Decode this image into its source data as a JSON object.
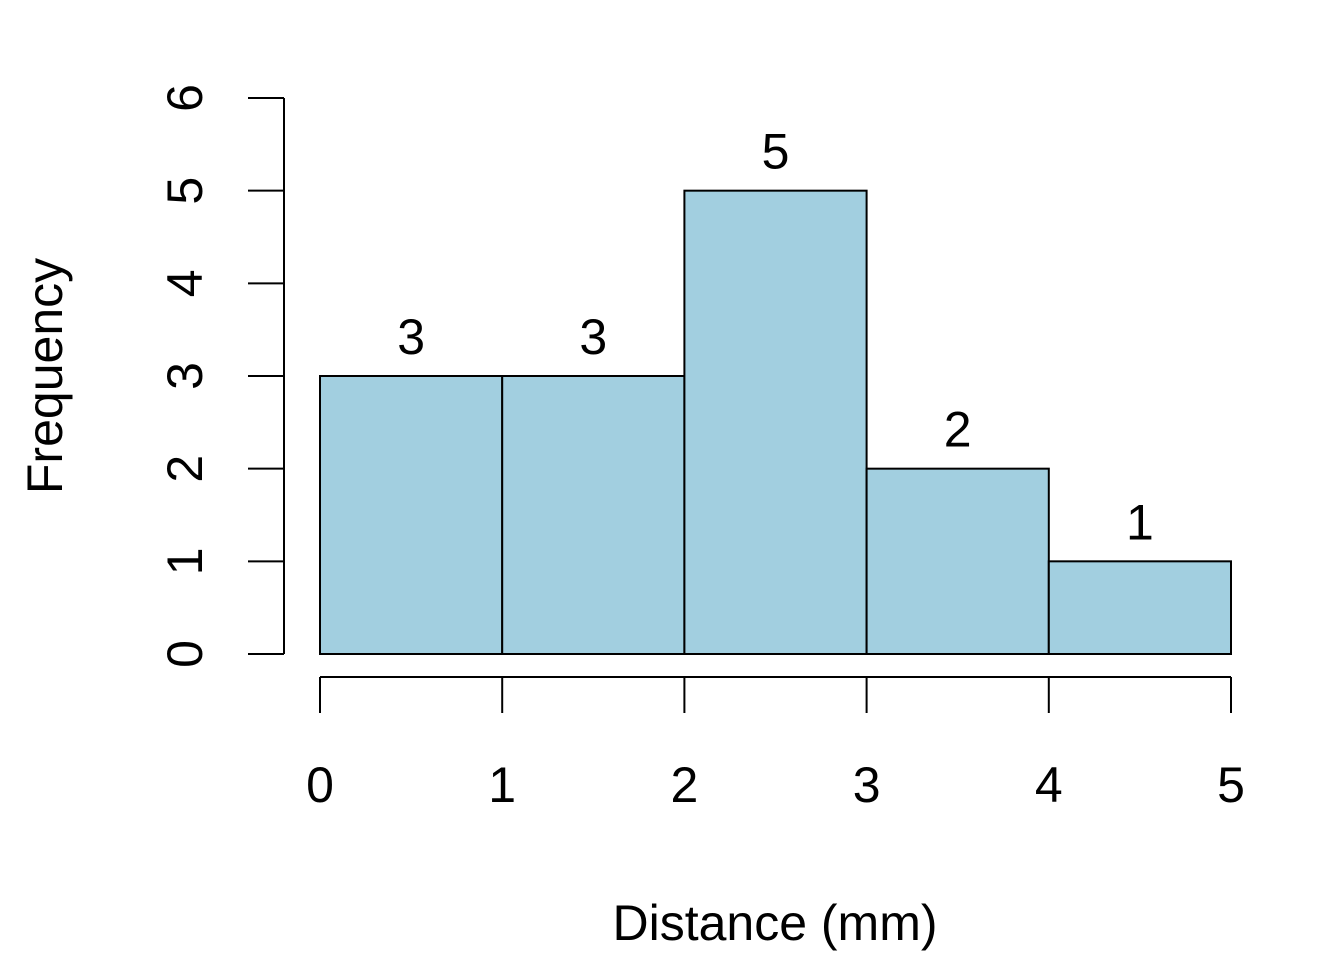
{
  "chart_data": {
    "type": "histogram",
    "bins": [
      {
        "start": 0,
        "end": 1,
        "count": 3
      },
      {
        "start": 1,
        "end": 2,
        "count": 3
      },
      {
        "start": 2,
        "end": 3,
        "count": 5
      },
      {
        "start": 3,
        "end": 4,
        "count": 2
      },
      {
        "start": 4,
        "end": 5,
        "count": 1
      }
    ],
    "xlabel": "Distance (mm)",
    "ylabel": "Frequency",
    "xlim": [
      0,
      5
    ],
    "ylim": [
      0,
      6
    ],
    "xticks": [
      0,
      1,
      2,
      3,
      4,
      5
    ],
    "yticks": [
      0,
      1,
      2,
      3,
      4,
      5,
      6
    ],
    "bar_labels": true,
    "grid": false,
    "colors": {
      "bar_fill": "#A2CFE0",
      "bar_stroke": "#000000",
      "axis": "#000000"
    }
  }
}
